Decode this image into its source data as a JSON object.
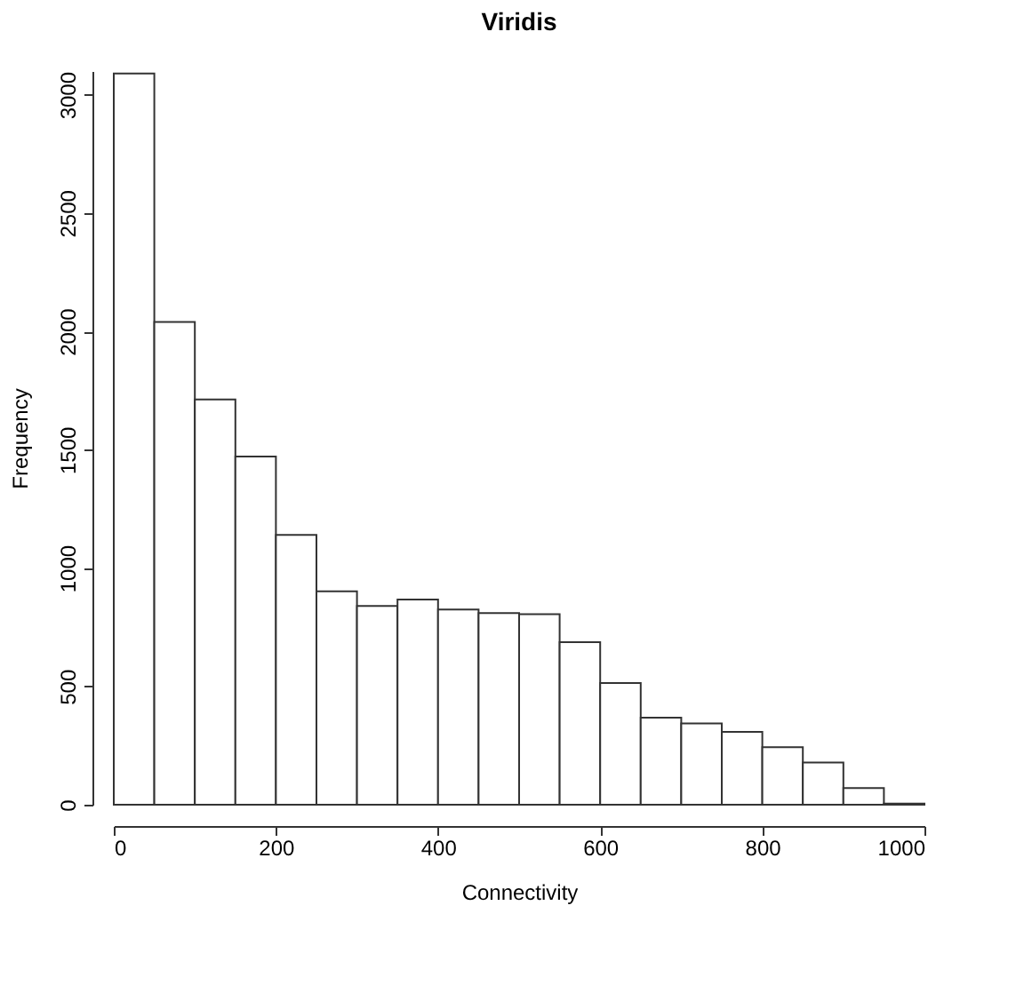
{
  "chart_data": {
    "type": "histogram",
    "title": "Viridis",
    "xlabel": "Connectivity",
    "ylabel": "Frequency",
    "bins": [
      0,
      50,
      100,
      150,
      200,
      250,
      300,
      350,
      400,
      450,
      500,
      550,
      600,
      650,
      700,
      750,
      800,
      850,
      900,
      950,
      1000
    ],
    "values": [
      3090,
      2040,
      1712,
      1471,
      1140,
      902,
      840,
      867,
      825,
      810,
      805,
      687,
      514,
      368,
      343,
      308,
      243,
      178,
      70,
      5
    ],
    "color": "#ffffff",
    "xlim": [
      0,
      1000
    ],
    "xticks": [
      0,
      200,
      400,
      600,
      800,
      1000
    ],
    "ylim": [
      0,
      3100
    ],
    "yticks": [
      0,
      500,
      1000,
      1500,
      2000,
      2500,
      3000
    ],
    "grid": false
  }
}
